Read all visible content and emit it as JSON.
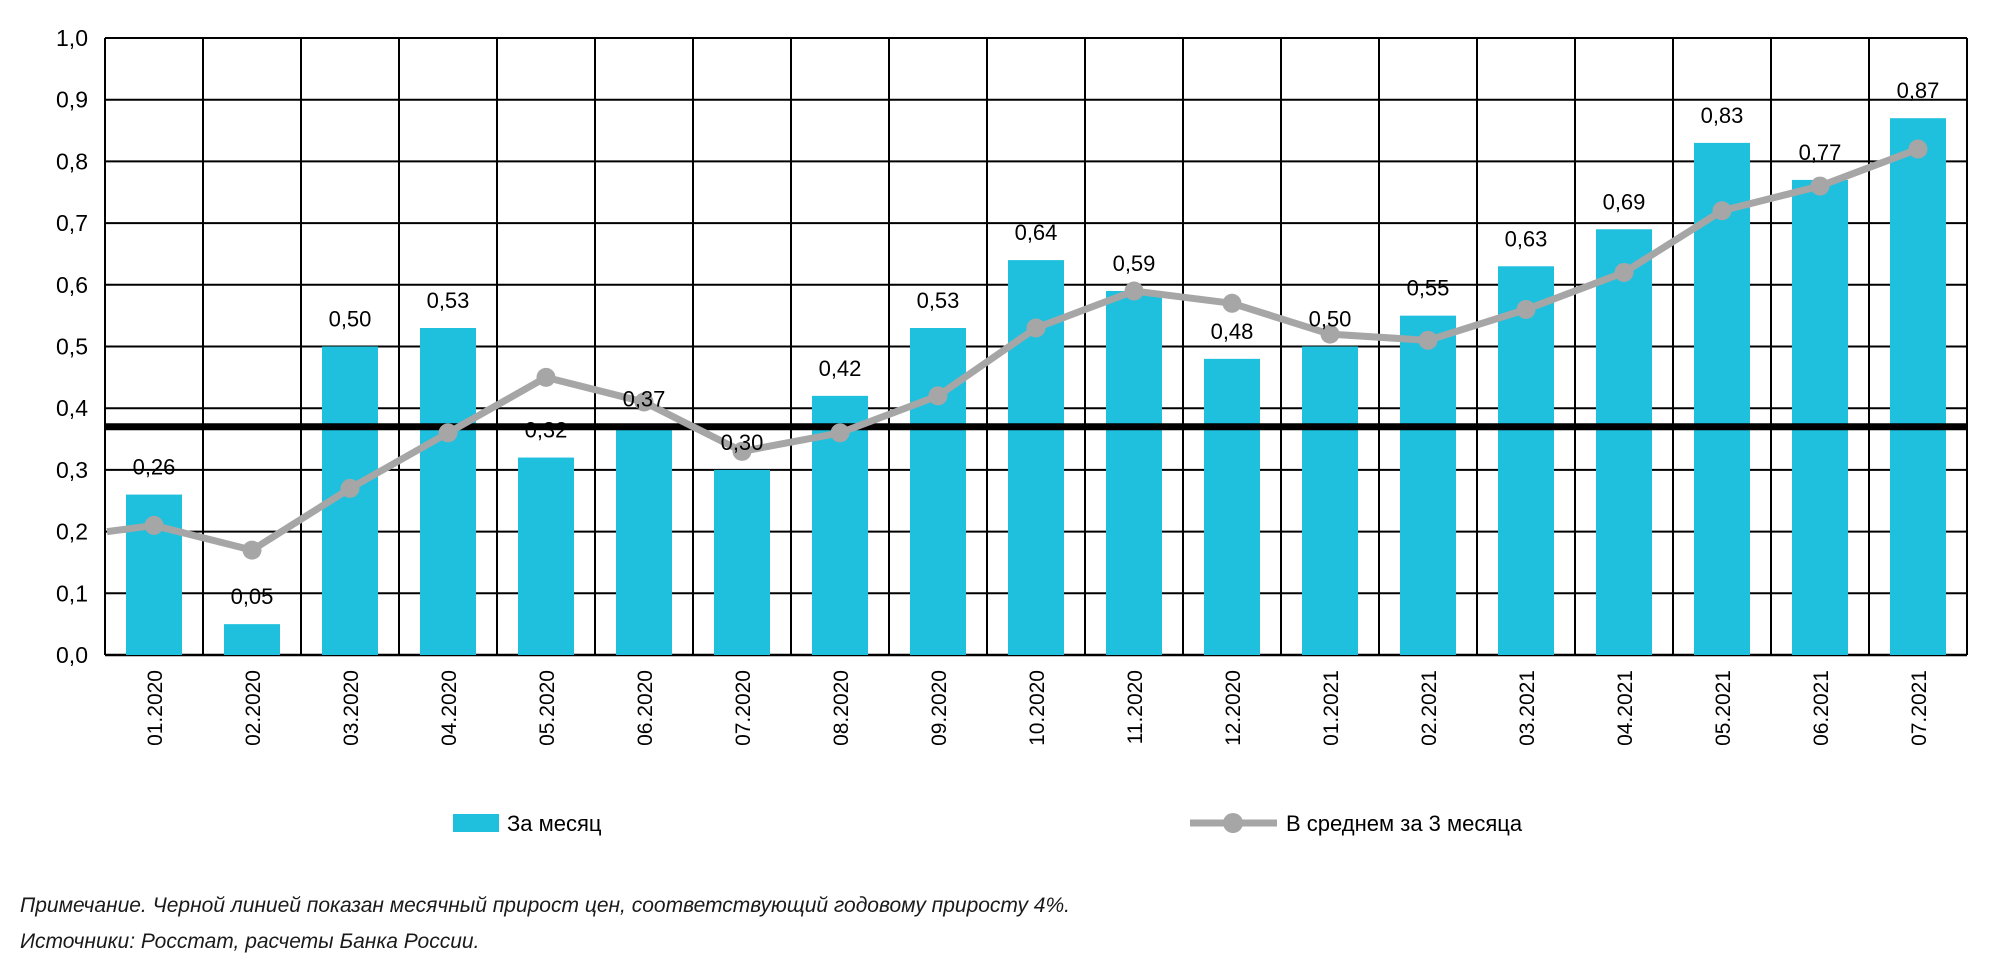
{
  "chart_data": {
    "type": "bar",
    "title": "",
    "categories": [
      "01.2020",
      "02.2020",
      "03.2020",
      "04.2020",
      "05.2020",
      "06.2020",
      "07.2020",
      "08.2020",
      "09.2020",
      "10.2020",
      "11.2020",
      "12.2020",
      "01.2021",
      "02.2021",
      "03.2021",
      "04.2021",
      "05.2021",
      "06.2021",
      "07.2021"
    ],
    "series": [
      {
        "name": "За месяц",
        "type": "bar",
        "color": "#1FC0DD",
        "values": [
          0.26,
          0.05,
          0.5,
          0.53,
          0.32,
          0.37,
          0.3,
          0.42,
          0.53,
          0.64,
          0.59,
          0.48,
          0.5,
          0.55,
          0.63,
          0.69,
          0.83,
          0.77,
          0.87
        ],
        "value_labels": [
          "0,26",
          "0,05",
          "0,50",
          "0,53",
          "0,32",
          "0,37",
          "0,30",
          "0,42",
          "0,53",
          "0,64",
          "0,59",
          "0,48",
          "0,50",
          "0,55",
          "0,63",
          "0,69",
          "0,83",
          "0,77",
          "0,87"
        ]
      },
      {
        "name": "В среднем за 3 месяца",
        "type": "line",
        "color": "#A6A6A6",
        "values": [
          0.21,
          0.17,
          0.27,
          0.36,
          0.45,
          0.41,
          0.33,
          0.36,
          0.42,
          0.53,
          0.59,
          0.57,
          0.52,
          0.51,
          0.56,
          0.62,
          0.72,
          0.76,
          0.82
        ],
        "edge_start_value": 0.2,
        "extends_to_left_edge": true
      }
    ],
    "reference_line": {
      "value": 0.37,
      "color": "#000000"
    },
    "xlabel": "",
    "ylabel": "",
    "ylim": [
      0,
      1
    ],
    "y_tick_step": 0.1,
    "y_tick_labels": [
      "0,0",
      "0,1",
      "0,2",
      "0,3",
      "0,4",
      "0,5",
      "0,6",
      "0,7",
      "0,8",
      "0,9",
      "1,0"
    ],
    "grid": true,
    "legend_position": "bottom"
  },
  "legend": {
    "items": [
      {
        "label": "За месяц",
        "swatch": "bar"
      },
      {
        "label": "В среднем за 3 месяца",
        "swatch": "line-marker"
      }
    ]
  },
  "notes": {
    "line1": "Примечание. Черной линией показан месячный прирост цен, соответствующий годовому приросту 4%.",
    "line2": "Источники: Росстат, расчеты Банка России."
  },
  "colors": {
    "bar": "#1FC0DD",
    "average_line": "#A6A6A6",
    "reference_line": "#000000",
    "grid": "#000000",
    "text": "#000000"
  }
}
